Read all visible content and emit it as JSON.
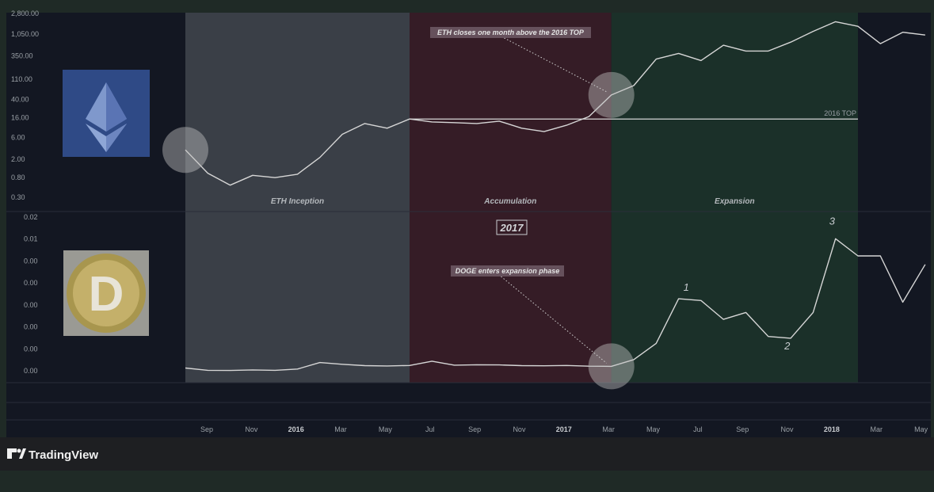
{
  "brand": {
    "name": "TradingView"
  },
  "colors": {
    "page_bg": "#1f2a26",
    "chart_bg": "#131722",
    "line": "#d6d6d6",
    "phase_inception": "#3a3f47",
    "phase_accumulation": "#351c26",
    "phase_expansion": "#1b3029",
    "circle": "#bfbfbf"
  },
  "chart_data": [
    {
      "type": "line",
      "name": "ETH",
      "logo_icon": "ethereum-logo-icon",
      "y_scale": "log",
      "y_tick_labels": [
        "2,800.00",
        "1,050.00",
        "350.00",
        "110.00",
        "40.00",
        "16.00",
        "6.00",
        "2.00",
        "0.80",
        "0.30"
      ],
      "y_tick_values": [
        2800,
        1050,
        350,
        110,
        40,
        16,
        6,
        2,
        0.8,
        0.3
      ],
      "x": [
        "2015-08",
        "2015-09",
        "2015-10",
        "2015-11",
        "2015-12",
        "2016-01",
        "2016-02",
        "2016-03",
        "2016-04",
        "2016-05",
        "2016-06",
        "2016-07",
        "2016-08",
        "2016-09",
        "2016-10",
        "2016-11",
        "2016-12",
        "2017-01",
        "2017-02",
        "2017-03",
        "2017-04",
        "2017-05",
        "2017-06",
        "2017-07",
        "2017-08",
        "2017-09",
        "2017-10",
        "2017-11",
        "2017-12",
        "2018-01",
        "2018-02",
        "2018-03",
        "2018-04",
        "2018-05"
      ],
      "values": [
        3.2,
        1.0,
        0.55,
        0.9,
        0.8,
        0.95,
        2.2,
        7.0,
        12.0,
        9.5,
        15.0,
        13.0,
        12.5,
        12.0,
        13.5,
        9.5,
        8.0,
        11.0,
        17.0,
        50.0,
        80.0,
        300.0,
        400.0,
        280.0,
        600.0,
        450.0,
        450.0,
        700.0,
        1200.0,
        1950.0,
        1550.0,
        650.0,
        1150.0,
        1000.0
      ],
      "reference_line": {
        "label": "2016 TOP",
        "value": 15.0,
        "from": "2016-06",
        "to": "2018-02"
      },
      "annotation": {
        "text": "ETH closes one month above the 2016 TOP",
        "points_to": "2017-03"
      },
      "highlight_circles": [
        "2015-08",
        "2017-03"
      ],
      "phases": [
        {
          "label": "ETH Inception",
          "from": "2015-08",
          "to": "2016-06"
        },
        {
          "label": "Accumulation",
          "from": "2016-06",
          "to": "2017-03"
        },
        {
          "label": "Expansion",
          "from": "2017-03",
          "to": "2018-02"
        }
      ]
    },
    {
      "type": "line",
      "name": "DOGE",
      "logo_icon": "dogecoin-logo-icon",
      "y_tick_labels": [
        "0.02",
        "0.01",
        "0.00",
        "0.00",
        "0.00",
        "0.00",
        "0.00",
        "0.00"
      ],
      "year_label": "2017",
      "x": [
        "2015-08",
        "2015-09",
        "2015-10",
        "2015-11",
        "2015-12",
        "2016-01",
        "2016-02",
        "2016-03",
        "2016-04",
        "2016-05",
        "2016-06",
        "2016-07",
        "2016-08",
        "2016-09",
        "2016-10",
        "2016-11",
        "2016-12",
        "2017-01",
        "2017-02",
        "2017-03",
        "2017-04",
        "2017-05",
        "2017-06",
        "2017-07",
        "2017-08",
        "2017-09",
        "2017-10",
        "2017-11",
        "2017-12",
        "2018-01",
        "2018-02",
        "2018-03",
        "2018-04",
        "2018-05"
      ],
      "values": [
        0.00026,
        0.00013,
        0.00012,
        0.00015,
        0.00013,
        0.0002,
        0.00058,
        0.00048,
        0.0004,
        0.00038,
        0.00041,
        0.00066,
        0.00043,
        0.00045,
        0.00044,
        0.0004,
        0.00039,
        0.00041,
        0.00037,
        0.00036,
        0.00075,
        0.0017,
        0.0043,
        0.0042,
        0.0031,
        0.0035,
        0.0021,
        0.002,
        0.0035,
        0.0078,
        0.0068,
        0.0068,
        0.0041,
        0.0063
      ],
      "annotation": {
        "text": "DOGE enters expansion phase",
        "points_to": "2017-03"
      },
      "highlight_circles": [
        "2017-03"
      ],
      "wave_labels": [
        {
          "text": "1",
          "at": "2017-06"
        },
        {
          "text": "2",
          "at": "2017-11"
        },
        {
          "text": "3",
          "at": "2018-01"
        }
      ]
    }
  ],
  "x_axis_labels": [
    {
      "text": "Sep",
      "bold": false
    },
    {
      "text": "Nov",
      "bold": false
    },
    {
      "text": "2016",
      "bold": true
    },
    {
      "text": "Mar",
      "bold": false
    },
    {
      "text": "May",
      "bold": false
    },
    {
      "text": "Jul",
      "bold": false
    },
    {
      "text": "Sep",
      "bold": false
    },
    {
      "text": "Nov",
      "bold": false
    },
    {
      "text": "2017",
      "bold": true
    },
    {
      "text": "Mar",
      "bold": false
    },
    {
      "text": "May",
      "bold": false
    },
    {
      "text": "Jul",
      "bold": false
    },
    {
      "text": "Sep",
      "bold": false
    },
    {
      "text": "Nov",
      "bold": false
    },
    {
      "text": "2018",
      "bold": true
    },
    {
      "text": "Mar",
      "bold": false
    },
    {
      "text": "May",
      "bold": false
    }
  ]
}
